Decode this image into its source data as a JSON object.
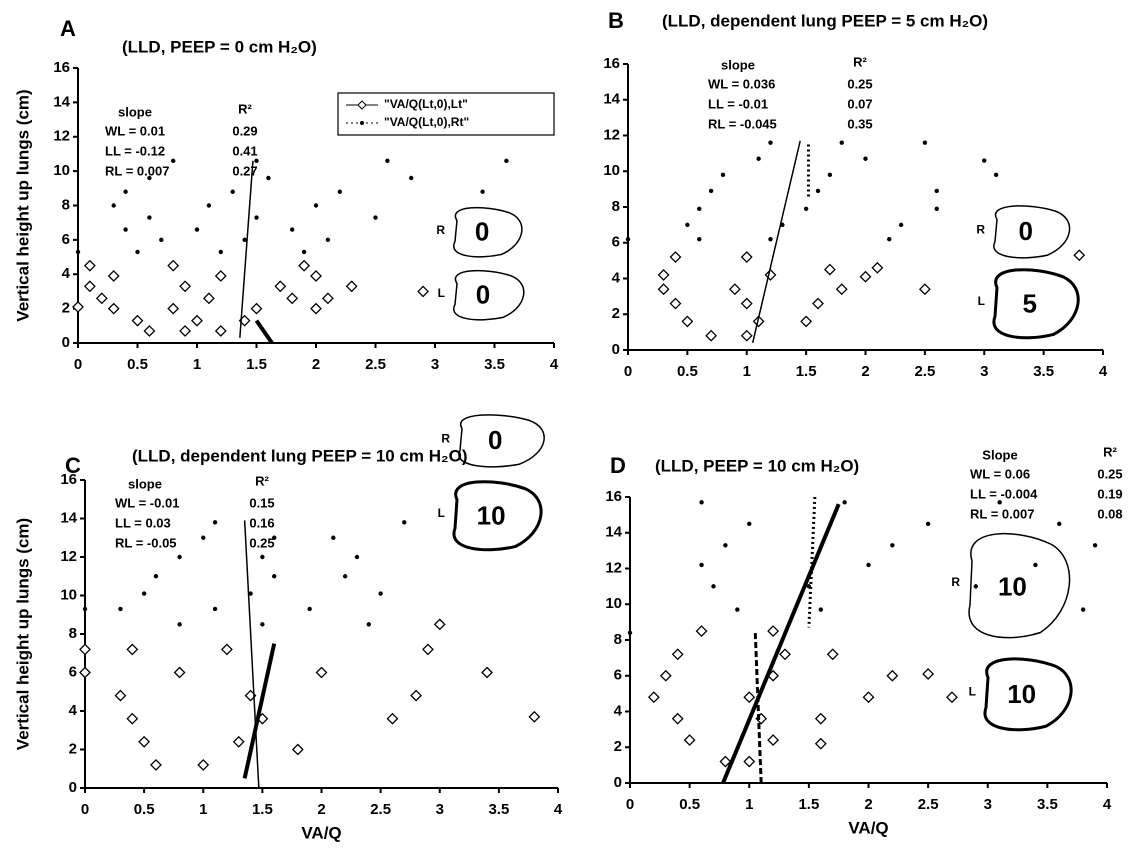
{
  "chart_data": [
    {
      "type": "scatter",
      "letter": "A",
      "title": "(LLD, PEEP = 0 cm H₂O)",
      "y_label": "Vertical height up lungs (cm)",
      "xlim": [
        0,
        4
      ],
      "ylim": [
        0,
        16
      ],
      "xticks": [
        0,
        0.5,
        1,
        1.5,
        2,
        2.5,
        3,
        3.5,
        4
      ],
      "yticks": [
        0,
        2,
        4,
        6,
        8,
        10,
        12,
        14,
        16
      ],
      "stats": {
        "headers": [
          "slope",
          "R²"
        ],
        "rows": [
          [
            "WL = 0.01",
            "0.29"
          ],
          [
            "LL  = -0.12",
            "0.41"
          ],
          [
            "RL = 0.007",
            "0.27"
          ]
        ]
      },
      "lungs": [
        {
          "side": "R",
          "peep": "0"
        },
        {
          "side": "L",
          "peep": "0"
        }
      ],
      "series": [
        {
          "name": "\"VA/Q(Lt,0),Lt\"",
          "marker": "diamond",
          "color": "#000",
          "x": [
            0.6,
            0.9,
            1.2,
            0.5,
            1.0,
            1.4,
            0.3,
            0.8,
            1.5,
            2.0,
            0.2,
            1.1,
            1.8,
            2.1,
            0.1,
            0.9,
            1.7,
            2.3,
            0.3,
            1.2,
            2.0,
            0.1,
            0.8,
            1.9,
            0.0,
            2.9
          ],
          "y": [
            0.7,
            0.7,
            0.7,
            1.3,
            1.3,
            1.3,
            2.0,
            2.0,
            2.0,
            2.0,
            2.6,
            2.6,
            2.6,
            2.6,
            3.3,
            3.3,
            3.3,
            3.3,
            3.9,
            3.9,
            3.9,
            4.5,
            4.5,
            4.5,
            2.1,
            3.0
          ]
        },
        {
          "name": "\"VA/Q(Lt,0),Rt\"",
          "marker": "dot",
          "color": "#000",
          "x": [
            0.5,
            1.2,
            1.9,
            0.7,
            1.4,
            2.1,
            0.4,
            1.0,
            1.8,
            0.6,
            1.5,
            2.5,
            0.3,
            1.1,
            2.0,
            0.4,
            1.3,
            2.2,
            3.4,
            0.6,
            1.6,
            2.8,
            0.8,
            1.5,
            2.6,
            3.6,
            0.0
          ],
          "y": [
            5.3,
            5.3,
            5.3,
            6.0,
            6.0,
            6.0,
            6.6,
            6.6,
            6.6,
            7.3,
            7.3,
            7.3,
            8.0,
            8.0,
            8.0,
            8.8,
            8.8,
            8.8,
            8.8,
            9.6,
            9.6,
            9.6,
            10.6,
            10.6,
            10.6,
            10.6,
            5.3
          ]
        }
      ],
      "fits": [
        {
          "x": [
            1.47,
            1.36
          ],
          "y": [
            10.6,
            0.3
          ],
          "style": "solid"
        },
        {
          "x": [
            1.5,
            1.63
          ],
          "y": [
            1.3,
            0
          ],
          "style": "thick"
        }
      ]
    },
    {
      "type": "scatter",
      "letter": "B",
      "title": "(LLD, dependent lung PEEP = 5 cm H₂O)",
      "xlim": [
        0,
        4
      ],
      "ylim": [
        0,
        16
      ],
      "xticks": [
        0,
        0.5,
        1,
        1.5,
        2,
        2.5,
        3,
        3.5,
        4
      ],
      "yticks": [
        0,
        2,
        4,
        6,
        8,
        10,
        12,
        14,
        16
      ],
      "stats": {
        "headers": [
          "slope",
          "R²"
        ],
        "rows": [
          [
            "WL = 0.036",
            "0.25"
          ],
          [
            "LL  = -0.01",
            "0.07"
          ],
          [
            "RL = -0.045",
            "0.35"
          ]
        ]
      },
      "lungs": [
        {
          "side": "R",
          "peep": "0"
        },
        {
          "side": "L",
          "peep": "5"
        }
      ],
      "series": [
        {
          "marker": "diamond",
          "color": "#000",
          "x": [
            0.7,
            1.0,
            0.5,
            1.1,
            1.5,
            0.4,
            1.0,
            1.6,
            0.3,
            0.9,
            1.8,
            2.5,
            0.3,
            1.2,
            2.0,
            0.4,
            1.0,
            1.7,
            3.8,
            2.1
          ],
          "y": [
            0.8,
            0.8,
            1.6,
            1.6,
            1.6,
            2.6,
            2.6,
            2.6,
            3.4,
            3.4,
            3.4,
            3.4,
            4.2,
            4.2,
            4.1,
            5.2,
            5.2,
            4.5,
            5.3,
            4.6
          ]
        },
        {
          "marker": "dot",
          "color": "#000",
          "x": [
            0.6,
            1.2,
            2.2,
            0.5,
            1.3,
            2.3,
            0.6,
            1.5,
            2.6,
            0.7,
            1.6,
            2.6,
            0.8,
            1.7,
            3.1,
            1.1,
            2.0,
            3.0,
            1.2,
            1.8,
            2.5,
            0.0
          ],
          "y": [
            6.2,
            6.2,
            6.2,
            7.0,
            7.0,
            7.0,
            7.9,
            7.9,
            7.9,
            8.9,
            8.9,
            8.9,
            9.8,
            9.8,
            9.8,
            10.7,
            10.7,
            10.6,
            11.6,
            11.6,
            11.6,
            6.2
          ]
        }
      ],
      "fits": [
        {
          "x": [
            1.05,
            1.45
          ],
          "y": [
            0.4,
            11.7
          ],
          "style": "solid"
        },
        {
          "x": [
            1.52,
            1.52
          ],
          "y": [
            11.5,
            8.5
          ],
          "style": "dotted"
        }
      ]
    },
    {
      "type": "scatter",
      "letter": "C",
      "title": "(LLD, dependent lung PEEP = 10 cm H₂O)",
      "y_label": "Vertical height up lungs (cm)",
      "x_label": "VA/Q",
      "xlim": [
        0,
        4
      ],
      "ylim": [
        0,
        16
      ],
      "xticks": [
        0,
        0.5,
        1,
        1.5,
        2,
        2.5,
        3,
        3.5,
        4
      ],
      "yticks": [
        0,
        2,
        4,
        6,
        8,
        10,
        12,
        14,
        16
      ],
      "stats": {
        "headers": [
          "slope",
          "R²"
        ],
        "rows": [
          [
            "WL = -0.01",
            "0.15"
          ],
          [
            "LL  = 0.03",
            "0.16"
          ],
          [
            "RL = -0.05",
            "0.25"
          ]
        ]
      },
      "lungs": [
        {
          "side": "R",
          "peep": "0"
        },
        {
          "side": "L",
          "peep": "10"
        }
      ],
      "series": [
        {
          "marker": "diamond",
          "color": "#000",
          "x": [
            0.6,
            1.0,
            0.5,
            1.3,
            1.8,
            0.4,
            1.5,
            2.6,
            3.8,
            0.3,
            1.4,
            2.8,
            0.0,
            0.8,
            2.0,
            3.4,
            0.0,
            0.4,
            1.2,
            2.9,
            3.0
          ],
          "y": [
            1.2,
            1.2,
            2.4,
            2.4,
            2.0,
            3.6,
            3.6,
            3.6,
            3.7,
            4.8,
            4.8,
            4.8,
            6.0,
            6.0,
            6.0,
            6.0,
            7.2,
            7.2,
            7.2,
            7.2,
            8.5
          ]
        },
        {
          "marker": "dot",
          "color": "#000",
          "x": [
            0.8,
            1.5,
            2.4,
            0.3,
            1.1,
            1.9,
            0.5,
            1.4,
            2.5,
            0.6,
            1.6,
            2.2,
            0.8,
            1.5,
            2.3,
            1.0,
            1.6,
            2.1,
            1.1,
            2.7,
            0.0
          ],
          "y": [
            8.5,
            8.5,
            8.5,
            9.3,
            9.3,
            9.3,
            10.1,
            10.1,
            10.1,
            11.0,
            11.0,
            11.0,
            12.0,
            12.0,
            12.0,
            13.0,
            13.0,
            13.0,
            13.8,
            13.8,
            9.3
          ]
        }
      ],
      "fits": [
        {
          "x": [
            1.35,
            1.47
          ],
          "y": [
            13.9,
            0
          ],
          "style": "solid"
        },
        {
          "x": [
            1.35,
            1.6
          ],
          "y": [
            0.5,
            7.5
          ],
          "style": "thick"
        }
      ]
    },
    {
      "type": "scatter",
      "letter": "D",
      "title": "(LLD, PEEP = 10 cm H₂O)",
      "x_label": "VA/Q",
      "xlim": [
        0,
        4
      ],
      "ylim": [
        0,
        16
      ],
      "xticks": [
        0,
        0.5,
        1,
        1.5,
        2,
        2.5,
        3,
        3.5,
        4
      ],
      "yticks": [
        0,
        2,
        4,
        6,
        8,
        10,
        12,
        14,
        16
      ],
      "stats": {
        "headers": [
          "Slope",
          "R²"
        ],
        "rows": [
          [
            "WL = 0.06",
            "0.25"
          ],
          [
            "LL  = -0.004",
            "0.19"
          ],
          [
            "RL = 0.007",
            "0.08"
          ]
        ]
      },
      "lungs": [
        {
          "side": "R",
          "peep": "10"
        },
        {
          "side": "L",
          "peep": "10"
        }
      ],
      "series": [
        {
          "marker": "diamond",
          "color": "#000",
          "x": [
            0.8,
            1.0,
            0.5,
            1.2,
            1.6,
            0.4,
            1.1,
            1.6,
            0.2,
            1.0,
            2.0,
            2.7,
            0.3,
            1.2,
            2.2,
            2.5,
            0.4,
            1.3,
            1.7,
            0.6,
            1.2
          ],
          "y": [
            1.2,
            1.2,
            2.4,
            2.4,
            2.2,
            3.6,
            3.6,
            3.6,
            4.8,
            4.8,
            4.8,
            4.8,
            6.0,
            6.0,
            6.0,
            6.1,
            7.2,
            7.2,
            7.2,
            8.5,
            8.5
          ]
        },
        {
          "marker": "dot",
          "color": "#000",
          "x": [
            0.9,
            1.6,
            3.8,
            0.7,
            1.5,
            2.9,
            0.6,
            2.0,
            3.4,
            0.8,
            2.2,
            3.9,
            1.0,
            2.5,
            3.6,
            0.6,
            1.8,
            3.1,
            0.0
          ],
          "y": [
            9.7,
            9.7,
            9.7,
            11.0,
            11.0,
            11.0,
            12.2,
            12.2,
            12.2,
            13.3,
            13.3,
            13.3,
            14.5,
            14.5,
            14.5,
            15.7,
            15.7,
            15.7,
            8.4
          ]
        }
      ],
      "fits": [
        {
          "x": [
            0.78,
            1.75
          ],
          "y": [
            0,
            15.6
          ],
          "style": "thick"
        },
        {
          "x": [
            1.1,
            1.05
          ],
          "y": [
            0,
            8.5
          ],
          "style": "dashed"
        },
        {
          "x": [
            1.55,
            1.5
          ],
          "y": [
            16,
            8.7
          ],
          "style": "dotted"
        }
      ]
    }
  ]
}
